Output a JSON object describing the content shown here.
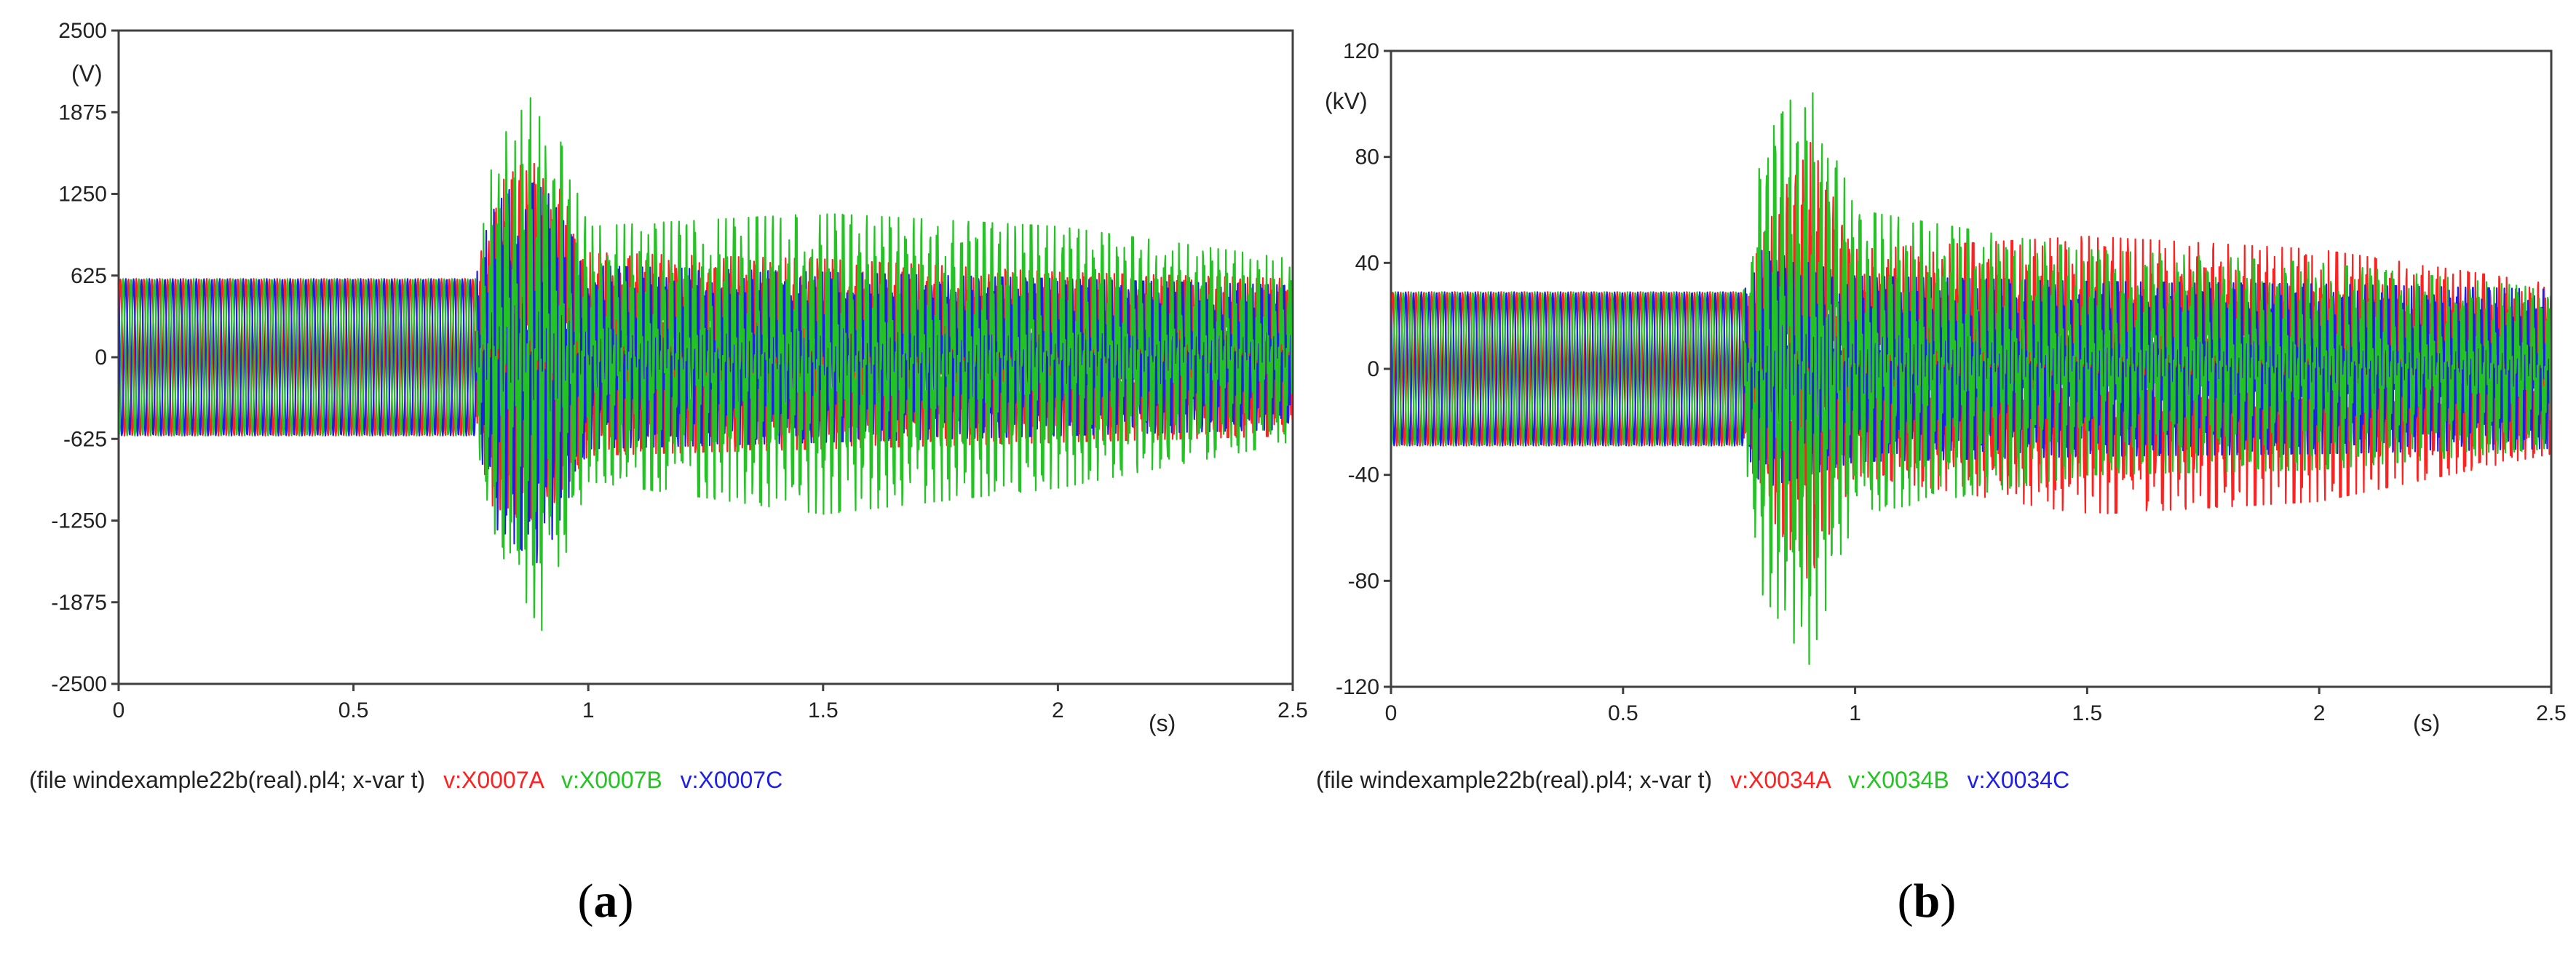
{
  "colors": {
    "phase_a": "#ff2020",
    "phase_b": "#22c322",
    "phase_c": "#1e1ee6",
    "frame": "#404040",
    "text": "#222222"
  },
  "chart_data": [
    {
      "type": "line",
      "panel_label": "a",
      "y_unit": "(V)",
      "x_unit": "(s)",
      "xlim": [
        0,
        2.5
      ],
      "ylim": [
        -2500,
        2500
      ],
      "grid": false,
      "x_ticks": [
        "0",
        "0.5",
        "1",
        "1.5",
        "2",
        "2.5"
      ],
      "y_ticks": [
        "2500",
        "1875",
        "1250",
        "625",
        "0",
        "-625",
        "-1250",
        "-1875",
        "-2500"
      ],
      "legend": {
        "file_text": "(file windexample22b(real).pl4; x-var t)",
        "placement": "bottom"
      },
      "waveform": {
        "frequency_hz": 60,
        "steady_amplitude": 600,
        "disturbance_start_s": 0.76,
        "peak_time_s": 0.89
      },
      "series": [
        {
          "name": "v:X0007A",
          "color_key": "phase_a",
          "envelope": {
            "t": [
              0,
              0.76,
              0.8,
              0.9,
              1.0,
              1.5,
              2.0,
              2.5
            ],
            "max": [
              600,
              600,
              1300,
              1600,
              800,
              750,
              650,
              600
            ],
            "min": [
              -600,
              -600,
              -1200,
              -1250,
              -750,
              -700,
              -650,
              -600
            ]
          }
        },
        {
          "name": "v:X0007B",
          "color_key": "phase_b",
          "envelope": {
            "t": [
              0,
              0.76,
              0.8,
              0.9,
              1.0,
              1.5,
              2.0,
              2.5
            ],
            "max": [
              600,
              600,
              1600,
              2100,
              1000,
              1100,
              1000,
              750
            ],
            "min": [
              -600,
              -600,
              -1400,
              -2100,
              -950,
              -1200,
              -1000,
              -650
            ]
          }
        },
        {
          "name": "v:X0007C",
          "color_key": "phase_c",
          "envelope": {
            "t": [
              0,
              0.76,
              0.8,
              0.9,
              1.0,
              1.5,
              2.0,
              2.5
            ],
            "max": [
              600,
              600,
              1250,
              1350,
              700,
              650,
              600,
              550
            ],
            "min": [
              -600,
              -600,
              -1300,
              -1600,
              -700,
              -650,
              -600,
              -550
            ]
          }
        }
      ]
    },
    {
      "type": "line",
      "panel_label": "b",
      "y_unit": "(kV)",
      "x_unit": "(s)",
      "xlim": [
        0,
        2.5
      ],
      "ylim": [
        -120,
        120
      ],
      "grid": false,
      "x_ticks": [
        "0",
        "0.5",
        "1",
        "1.5",
        "2",
        "2.5"
      ],
      "y_ticks": [
        "120",
        "80",
        "40",
        "0",
        "-40",
        "-80",
        "-120"
      ],
      "legend": {
        "file_text": "(file windexample22b(real).pl4; x-var t)",
        "placement": "bottom"
      },
      "waveform": {
        "frequency_hz": 60,
        "steady_amplitude": 29,
        "disturbance_start_s": 0.76,
        "peak_time_s": 0.89
      },
      "series": [
        {
          "name": "v:X0034A",
          "color_key": "phase_a",
          "envelope": {
            "t": [
              0,
              0.76,
              0.8,
              0.9,
              1.0,
              1.5,
              2.0,
              2.5
            ],
            "max": [
              29,
              29,
              50,
              87,
              45,
              50,
              45,
              32
            ],
            "min": [
              -29,
              -29,
              -50,
              -80,
              -40,
              -55,
              -50,
              -32
            ]
          }
        },
        {
          "name": "v:X0034B",
          "color_key": "phase_b",
          "envelope": {
            "t": [
              0,
              0.76,
              0.8,
              0.9,
              1.0,
              1.5,
              2.0,
              2.5
            ],
            "max": [
              29,
              29,
              85,
              112,
              60,
              45,
              40,
              30
            ],
            "min": [
              -29,
              -29,
              -85,
              -112,
              -55,
              -40,
              -38,
              -30
            ]
          }
        },
        {
          "name": "v:X0034C",
          "color_key": "phase_c",
          "envelope": {
            "t": [
              0,
              0.76,
              0.8,
              0.9,
              1.0,
              1.5,
              2.0,
              2.5
            ],
            "max": [
              29,
              29,
              45,
              40,
              35,
              33,
              32,
              30
            ],
            "min": [
              -29,
              -29,
              -45,
              -40,
              -35,
              -33,
              -32,
              -30
            ]
          }
        }
      ]
    }
  ]
}
